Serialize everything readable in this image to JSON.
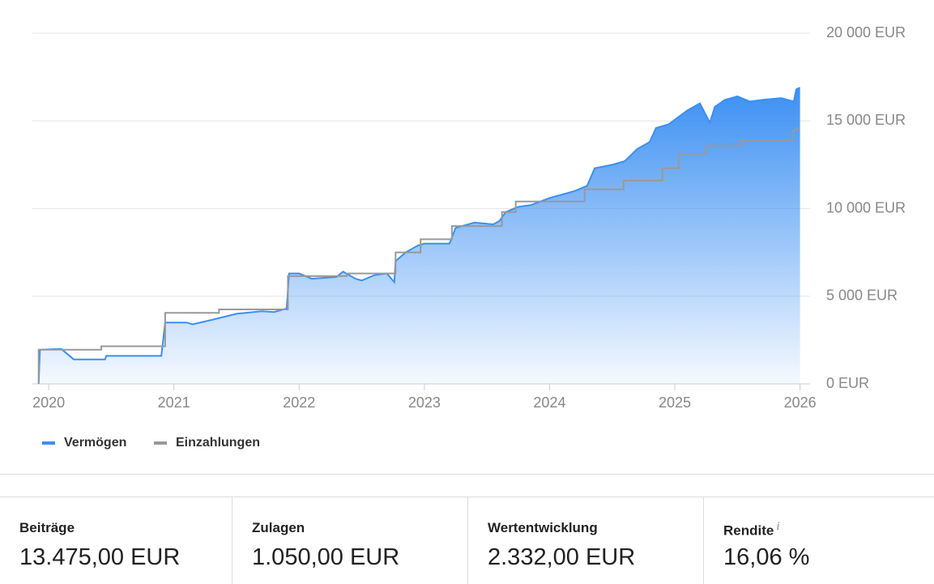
{
  "chart_data": {
    "type": "area-line",
    "xlim": [
      2019.87,
      2026.08
    ],
    "xticks": [
      2020,
      2021,
      2022,
      2023,
      2024,
      2025,
      2026
    ],
    "ylim": [
      0,
      20000
    ],
    "yticks": [
      {
        "value": 0,
        "label": "0 EUR"
      },
      {
        "value": 5000,
        "label": "5 000 EUR"
      },
      {
        "value": 10000,
        "label": "10 000 EUR"
      },
      {
        "value": 15000,
        "label": "15 000 EUR"
      },
      {
        "value": 20000,
        "label": "20 000 EUR"
      }
    ],
    "grid": true,
    "series": [
      {
        "name": "Vermögen",
        "color": "#3b8ff3",
        "x": [
          2019.92,
          2019.93,
          2020.1,
          2020.2,
          2020.45,
          2020.46,
          2020.9,
          2020.93,
          2021.1,
          2021.15,
          2021.3,
          2021.5,
          2021.7,
          2021.8,
          2021.9,
          2021.92,
          2022.0,
          2022.1,
          2022.3,
          2022.35,
          2022.45,
          2022.5,
          2022.6,
          2022.7,
          2022.76,
          2022.77,
          2022.85,
          2022.95,
          2023.0,
          2023.2,
          2023.25,
          2023.4,
          2023.55,
          2023.6,
          2023.65,
          2023.75,
          2023.85,
          2024.0,
          2024.2,
          2024.3,
          2024.36,
          2024.5,
          2024.6,
          2024.7,
          2024.8,
          2024.85,
          2024.95,
          2025.1,
          2025.2,
          2025.28,
          2025.32,
          2025.4,
          2025.5,
          2025.6,
          2025.7,
          2025.85,
          2025.95,
          2025.97,
          2026.0
        ],
        "values": [
          0,
          1950,
          2000,
          1400,
          1400,
          1600,
          1600,
          3500,
          3500,
          3400,
          3650,
          4000,
          4150,
          4100,
          4300,
          6300,
          6300,
          6000,
          6100,
          6400,
          6000,
          5900,
          6200,
          6300,
          5800,
          7000,
          7500,
          7900,
          8000,
          8000,
          8900,
          9200,
          9100,
          9300,
          9800,
          10100,
          10200,
          10600,
          11000,
          11300,
          12300,
          12500,
          12700,
          13400,
          13800,
          14600,
          14800,
          15600,
          16000,
          14900,
          15800,
          16200,
          16400,
          16100,
          16200,
          16300,
          16100,
          16800,
          16900
        ]
      },
      {
        "name": "Einzahlungen",
        "color": "#999999",
        "x": [
          2019.92,
          2019.92,
          2020.42,
          2020.42,
          2020.93,
          2020.93,
          2021.36,
          2021.36,
          2021.91,
          2021.91,
          2022.38,
          2022.38,
          2022.77,
          2022.77,
          2022.97,
          2022.97,
          2023.22,
          2023.22,
          2023.62,
          2023.62,
          2023.73,
          2023.73,
          2024.28,
          2024.28,
          2024.59,
          2024.59,
          2024.9,
          2024.9,
          2025.03,
          2025.03,
          2025.25,
          2025.25,
          2025.53,
          2025.53,
          2025.94,
          2025.94,
          2026.0
        ],
        "values": [
          0,
          1950,
          1950,
          2150,
          2150,
          4050,
          4050,
          4250,
          4250,
          6150,
          6150,
          6300,
          6300,
          7500,
          7500,
          8250,
          8250,
          9000,
          9000,
          9800,
          9800,
          10400,
          10400,
          11100,
          11100,
          11600,
          11600,
          12300,
          12300,
          13100,
          13100,
          13600,
          13600,
          13900,
          13900,
          14400,
          14600
        ]
      }
    ]
  },
  "summary": [
    {
      "label": "Beiträge",
      "value": "13.475,00 EUR"
    },
    {
      "label": "Zulagen",
      "value": "1.050,00 EUR"
    },
    {
      "label": "Wertentwicklung",
      "value": "2.332,00 EUR"
    },
    {
      "label": "Rendite",
      "info": "i",
      "value": "16,06 %"
    }
  ]
}
